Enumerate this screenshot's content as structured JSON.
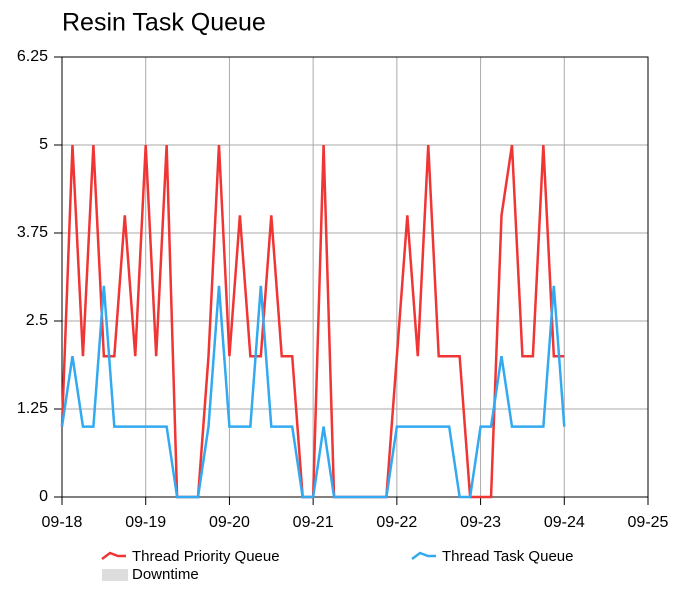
{
  "chart_data": {
    "type": "line",
    "title": "Resin Task Queue",
    "x": [
      18,
      18.125,
      18.25,
      18.375,
      18.5,
      18.625,
      18.75,
      18.875,
      19,
      19.125,
      19.25,
      19.375,
      19.5,
      19.625,
      19.75,
      19.875,
      20,
      20.125,
      20.25,
      20.375,
      20.5,
      20.625,
      20.75,
      20.875,
      21,
      21.125,
      21.25,
      21.375,
      21.5,
      21.625,
      21.75,
      21.875,
      22,
      22.125,
      22.25,
      22.375,
      22.5,
      22.625,
      22.75,
      22.875,
      23,
      23.125,
      23.25,
      23.375,
      23.5,
      23.625,
      23.75,
      23.875,
      24
    ],
    "series": [
      {
        "name": "Thread Priority Queue",
        "color": "#f03535",
        "values": [
          1,
          5,
          2,
          5,
          2,
          2,
          4,
          2,
          5,
          2,
          5,
          0,
          0,
          0,
          2,
          5,
          2,
          4,
          2,
          2,
          4,
          2,
          2,
          0,
          0,
          5,
          0,
          0,
          0,
          0,
          0,
          0,
          2,
          4,
          2,
          5,
          2,
          2,
          2,
          0,
          0,
          0,
          4,
          5,
          2,
          2,
          5,
          2,
          2
        ]
      },
      {
        "name": "Thread Task Queue",
        "color": "#33aaf0",
        "values": [
          1,
          2,
          1,
          1,
          3,
          1,
          1,
          1,
          1,
          1,
          1,
          0,
          0,
          0,
          1,
          3,
          1,
          1,
          1,
          3,
          1,
          1,
          1,
          0,
          0,
          1,
          0,
          0,
          0,
          0,
          0,
          0,
          1,
          1,
          1,
          1,
          1,
          1,
          0,
          0,
          1,
          1,
          2,
          1,
          1,
          1,
          1,
          3,
          1
        ]
      }
    ],
    "legend_extra": {
      "name": "Downtime",
      "color": "#dddddd"
    },
    "xlim": [
      18,
      25
    ],
    "xticks": [
      {
        "value": 18,
        "label": "09-18"
      },
      {
        "value": 19,
        "label": "09-19"
      },
      {
        "value": 20,
        "label": "09-20"
      },
      {
        "value": 21,
        "label": "09-21"
      },
      {
        "value": 22,
        "label": "09-22"
      },
      {
        "value": 23,
        "label": "09-23"
      },
      {
        "value": 24,
        "label": "09-24"
      },
      {
        "value": 25,
        "label": "09-25"
      }
    ],
    "ylim": [
      0,
      6.25
    ],
    "yticks": [
      0,
      1.25,
      2.5,
      3.75,
      5,
      6.25
    ],
    "grid": true
  }
}
